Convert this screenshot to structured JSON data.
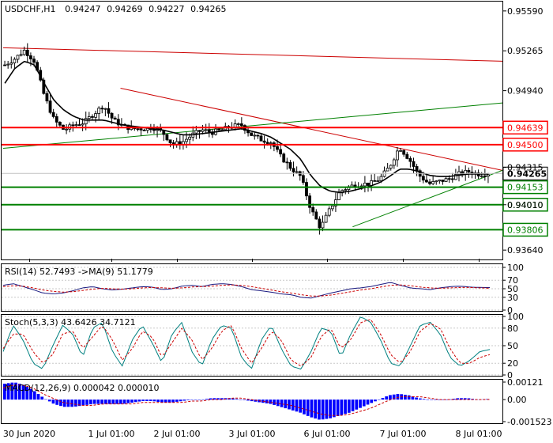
{
  "header": {
    "symbol": "USDCHF,H1",
    "open": "0.94247",
    "high": "0.94269",
    "low": "0.94227",
    "close": "0.94265"
  },
  "main_axis": {
    "labels": [
      "0.95590",
      "0.95265",
      "0.94940",
      "0.94315",
      "0.94010",
      "0.93640"
    ],
    "values": [
      0.9559,
      0.95265,
      0.9494,
      0.94315,
      0.9401,
      0.9364
    ]
  },
  "time_axis": [
    "30 Jun 2020",
    "1 Jul 01:00",
    "2 Jul 01:00",
    "3 Jul 01:00",
    "6 Jul 01:00",
    "7 Jul 01:00",
    "8 Jul 01:00"
  ],
  "levels": [
    {
      "value": 0.94639,
      "label": "0.94639",
      "color": "#ff0000"
    },
    {
      "value": 0.945,
      "label": "0.94500",
      "color": "#ff0000"
    },
    {
      "value": 0.94153,
      "label": "0.94153",
      "color": "#008000"
    },
    {
      "value": 0.9401,
      "label": "0.94010",
      "color": "#008000"
    },
    {
      "value": 0.93806,
      "label": "0.93806",
      "color": "#008000"
    }
  ],
  "current_price": {
    "value": 0.94265,
    "label": "0.94265",
    "color": "#000000"
  },
  "rsi": {
    "label": "RSI(14) 52.7493 ->MA(9) 51.1779",
    "ticks": [
      "100",
      "70",
      "50",
      "30",
      "0"
    ]
  },
  "stoch": {
    "label": "Stoch(5,3,3) 43.6426 34.7121",
    "ticks": [
      "100",
      "80",
      "50",
      "20",
      "0"
    ]
  },
  "macd": {
    "label": "MACD(12,26,9) 0.000042 0.000010",
    "ticks": [
      "0.00121",
      "0.00",
      "-0.001523"
    ]
  },
  "colors": {
    "candle": "#000000",
    "ma_line": "#000000",
    "resistance_level": "#ff0000",
    "support_level": "#008000",
    "trend_red": "#cc0000",
    "trend_green": "#008000",
    "rsi_line": "#1a1a80",
    "rsi_ma": "#cc0000",
    "stoch_main": "#008080",
    "stoch_signal": "#cc0000",
    "macd_hist": "#0000ff",
    "macd_signal": "#cc0000"
  },
  "chart_data": [
    {
      "type": "candlestick",
      "title": "USDCHF,H1",
      "x": [
        "30 Jun 2020",
        "1 Jul 01:00",
        "2 Jul 01:00",
        "3 Jul 01:00",
        "6 Jul 01:00",
        "7 Jul 01:00",
        "8 Jul 01:00"
      ],
      "close_path": [
        0.9515,
        0.952,
        0.9527,
        0.9518,
        0.949,
        0.947,
        0.9462,
        0.9466,
        0.9468,
        0.9475,
        0.9482,
        0.947,
        0.9465,
        0.9463,
        0.9463,
        0.9464,
        0.946,
        0.945,
        0.9452,
        0.9458,
        0.9462,
        0.946,
        0.9462,
        0.9465,
        0.9466,
        0.9458,
        0.9454,
        0.9452,
        0.944,
        0.9431,
        0.9424,
        0.9398,
        0.9382,
        0.9398,
        0.9412,
        0.9416,
        0.9418,
        0.9418,
        0.9422,
        0.9432,
        0.9448,
        0.9438,
        0.9425,
        0.9418,
        0.942,
        0.9422,
        0.9426,
        0.9428,
        0.9426,
        0.94265
      ],
      "ylim": [
        0.9357,
        0.9566
      ],
      "ma_line": [
        0.95,
        0.9512,
        0.9518,
        0.9515,
        0.95,
        0.9486,
        0.9478,
        0.9473,
        0.947,
        0.947,
        0.947,
        0.9468,
        0.9466,
        0.9465,
        0.9464,
        0.9463,
        0.9462,
        0.946,
        0.9458,
        0.9458,
        0.9459,
        0.946,
        0.9461,
        0.9462,
        0.9463,
        0.9461,
        0.9459,
        0.9456,
        0.9451,
        0.9446,
        0.9438,
        0.9425,
        0.9416,
        0.9412,
        0.9411,
        0.9412,
        0.9414,
        0.9416,
        0.9419,
        0.9424,
        0.943,
        0.943,
        0.9428,
        0.9425,
        0.9424,
        0.9424,
        0.9425,
        0.9426,
        0.9426,
        0.9426
      ],
      "horizontal_levels": [
        0.94639,
        0.945,
        0.94153,
        0.9401,
        0.93806
      ],
      "trendlines": [
        {
          "color": "red",
          "from": [
            0,
            0.9529
          ],
          "to": [
            1,
            0.9518
          ]
        },
        {
          "color": "red",
          "from": [
            0.235,
            0.9496
          ],
          "to": [
            1,
            0.9429
          ]
        },
        {
          "color": "green",
          "from": [
            0,
            0.9447
          ],
          "to": [
            1,
            0.9484
          ]
        },
        {
          "color": "green",
          "from": [
            0.7,
            0.9383
          ],
          "to": [
            1,
            0.9429
          ]
        }
      ]
    },
    {
      "type": "line",
      "title": "RSI(14)",
      "ylim": [
        0,
        100
      ],
      "series": [
        {
          "name": "RSI(14)",
          "values": [
            58,
            62,
            55,
            48,
            40,
            38,
            40,
            45,
            52,
            55,
            50,
            47,
            49,
            52,
            55,
            54,
            48,
            50,
            56,
            58,
            55,
            60,
            62,
            60,
            55,
            48,
            45,
            42,
            38,
            36,
            30,
            28,
            34,
            40,
            45,
            50,
            52,
            55,
            60,
            65,
            58,
            52,
            50,
            48,
            52,
            55,
            56,
            54,
            53,
            52.7
          ]
        },
        {
          "name": "MA(9)",
          "values": [
            55,
            57,
            56,
            52,
            47,
            44,
            42,
            43,
            46,
            49,
            51,
            50,
            49,
            50,
            52,
            53,
            52,
            51,
            52,
            54,
            55,
            56,
            58,
            59,
            58,
            55,
            51,
            47,
            43,
            40,
            36,
            33,
            33,
            35,
            39,
            43,
            47,
            50,
            54,
            58,
            59,
            57,
            54,
            52,
            51,
            52,
            53,
            53,
            52,
            51.2
          ]
        }
      ]
    },
    {
      "type": "line",
      "title": "Stoch(5,3,3)",
      "ylim": [
        0,
        100
      ],
      "series": [
        {
          "name": "Stoch main",
          "values": [
            40,
            85,
            60,
            20,
            10,
            50,
            85,
            70,
            30,
            80,
            90,
            40,
            15,
            60,
            85,
            55,
            20,
            70,
            90,
            40,
            15,
            60,
            85,
            80,
            30,
            10,
            60,
            85,
            45,
            15,
            10,
            40,
            80,
            75,
            30,
            70,
            100,
            90,
            60,
            20,
            15,
            50,
            85,
            90,
            70,
            30,
            15,
            25,
            40,
            43.6
          ]
        },
        {
          "name": "Stoch signal",
          "values": [
            45,
            70,
            70,
            40,
            20,
            35,
            70,
            75,
            45,
            65,
            85,
            60,
            25,
            45,
            75,
            65,
            30,
            55,
            80,
            60,
            25,
            45,
            75,
            85,
            45,
            20,
            45,
            75,
            60,
            25,
            15,
            30,
            65,
            80,
            45,
            60,
            90,
            95,
            70,
            35,
            20,
            40,
            75,
            88,
            80,
            45,
            20,
            20,
            30,
            34.7
          ]
        }
      ]
    },
    {
      "type": "bar",
      "title": "MACD(12,26,9)",
      "ylim": [
        -0.001523,
        0.00121
      ],
      "series": [
        {
          "name": "MACD histogram",
          "values": [
            0.0011,
            0.0012,
            0.001,
            0.0006,
            0.0001,
            -0.0003,
            -0.0005,
            -0.0005,
            -0.0004,
            -0.0003,
            -0.0003,
            -0.0003,
            -0.0003,
            -0.0002,
            -0.0001,
            -0.0001,
            -0.0002,
            -0.0002,
            -0.0001,
            0.0,
            0.0,
            0.0001,
            0.0001,
            0.0001,
            0.0,
            -0.0001,
            -0.0002,
            -0.0003,
            -0.0005,
            -0.0007,
            -0.0009,
            -0.0012,
            -0.0014,
            -0.0013,
            -0.0011,
            -0.0009,
            -0.0006,
            -0.0003,
            0.0,
            0.0003,
            0.0004,
            0.0003,
            0.0001,
            0.0,
            0.0,
            0.0,
            0.0001,
            0.0001,
            0.0,
            4.2e-05
          ]
        },
        {
          "name": "Signal",
          "values": [
            0.0008,
            0.001,
            0.001,
            0.0008,
            0.0004,
            0.0001,
            -0.0002,
            -0.0003,
            -0.0004,
            -0.0004,
            -0.0003,
            -0.0003,
            -0.0003,
            -0.0003,
            -0.0002,
            -0.0002,
            -0.0002,
            -0.0002,
            -0.0002,
            -0.0001,
            -0.0001,
            0.0,
            0.0,
            0.0001,
            0.0001,
            0.0,
            -0.0001,
            -0.0002,
            -0.0003,
            -0.0004,
            -0.0006,
            -0.0008,
            -0.001,
            -0.0011,
            -0.0011,
            -0.001,
            -0.0008,
            -0.0006,
            -0.0003,
            0.0,
            0.0002,
            0.0002,
            0.0002,
            0.0001,
            0.0,
            0.0,
            0.0,
            0.0,
            0.0,
            1e-05
          ]
        }
      ]
    }
  ]
}
